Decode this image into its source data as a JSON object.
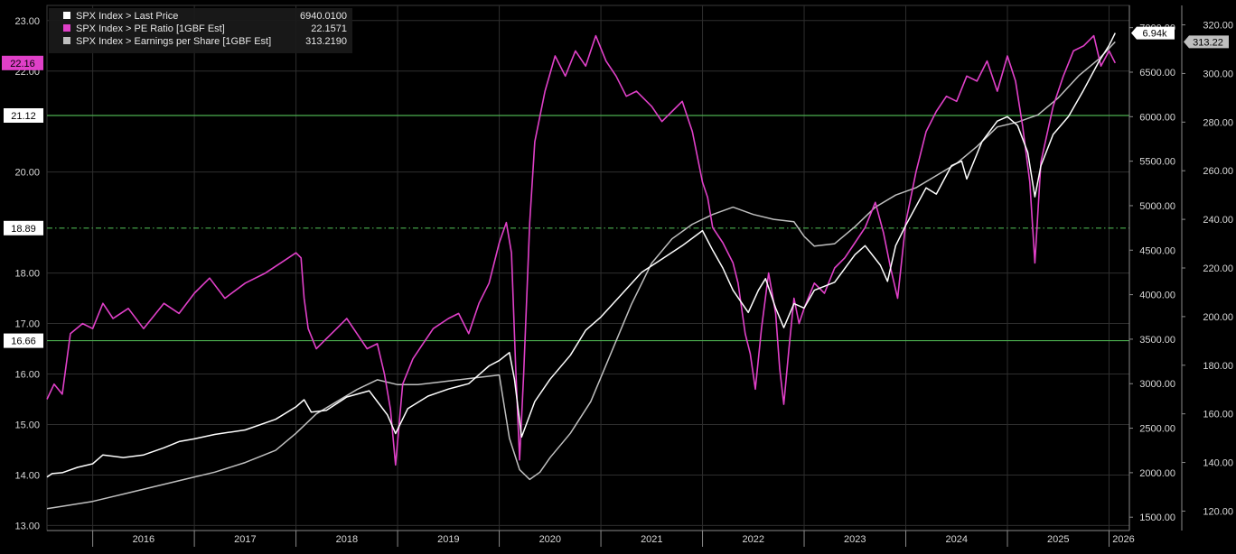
{
  "chart_data": {
    "type": "line",
    "x_years": [
      "2016",
      "2017",
      "2018",
      "2019",
      "2020",
      "2021",
      "2022",
      "2023",
      "2024",
      "2025",
      "2026"
    ],
    "legend": [
      {
        "label": "SPX Index > Last Price",
        "value": "6940.0100",
        "color": "#ffffff"
      },
      {
        "label": "SPX Index > PE Ratio [1GBF Est]",
        "value": "22.1571",
        "color": "#e040c8"
      },
      {
        "label": "SPX Index > Earnings per Share [1GBF Est]",
        "value": "313.2190",
        "color": "#bfbfbf"
      }
    ],
    "left_axis": {
      "ylim": [
        12.9,
        23.3
      ],
      "ticks": [
        "13.00",
        "14.00",
        "15.00",
        "16.00",
        "17.00",
        "18.00",
        "20.00",
        "22.00",
        "23.00"
      ]
    },
    "price_axis": {
      "ylim": [
        1350,
        7250
      ],
      "ticks": [
        "1500.00",
        "2000.00",
        "2500.00",
        "3000.00",
        "3500.00",
        "4000.00",
        "4500.00",
        "5000.00",
        "5500.00",
        "6000.00",
        "6500.00",
        "7000.00"
      ]
    },
    "eps_axis": {
      "ylim": [
        112,
        328
      ],
      "ticks": [
        "120.00",
        "140.00",
        "160.00",
        "180.00",
        "200.00",
        "220.00",
        "240.00",
        "260.00",
        "280.00",
        "300.00",
        "320.00"
      ]
    },
    "reference_lines": [
      {
        "label": "21.12",
        "value": 21.12,
        "style": "solid",
        "color": "#4caf50"
      },
      {
        "label": "18.89",
        "value": 18.89,
        "style": "dashdot",
        "color": "#4caf50"
      },
      {
        "label": "16.66",
        "value": 16.66,
        "style": "solid",
        "color": "#4caf50"
      }
    ],
    "tags": {
      "pe": "22.16",
      "price": "6.94k",
      "eps": "313.22"
    },
    "series": [
      {
        "name": "SPX Index > Last Price",
        "axis": "price",
        "color": "#ffffff",
        "x": [
          2015.55,
          2015.6,
          2015.7,
          2015.85,
          2016.0,
          2016.1,
          2016.3,
          2016.5,
          2016.7,
          2016.85,
          2017.0,
          2017.2,
          2017.5,
          2017.8,
          2018.0,
          2018.08,
          2018.15,
          2018.3,
          2018.5,
          2018.72,
          2018.8,
          2018.9,
          2018.98,
          2019.1,
          2019.3,
          2019.4,
          2019.5,
          2019.7,
          2019.9,
          2020.0,
          2020.1,
          2020.15,
          2020.22,
          2020.35,
          2020.5,
          2020.7,
          2020.85,
          2021.0,
          2021.2,
          2021.4,
          2021.6,
          2021.8,
          2022.0,
          2022.1,
          2022.2,
          2022.3,
          2022.45,
          2022.55,
          2022.62,
          2022.72,
          2022.8,
          2022.9,
          2023.0,
          2023.1,
          2023.3,
          2023.5,
          2023.6,
          2023.75,
          2023.82,
          2023.9,
          2024.0,
          2024.2,
          2024.3,
          2024.45,
          2024.55,
          2024.6,
          2024.75,
          2024.9,
          2025.0,
          2025.1,
          2025.2,
          2025.27,
          2025.33,
          2025.45,
          2025.6,
          2025.75,
          2025.9,
          2026.0,
          2026.06
        ],
        "y": [
          1950,
          1990,
          2000,
          2060,
          2100,
          2200,
          2170,
          2200,
          2280,
          2350,
          2380,
          2430,
          2480,
          2600,
          2740,
          2820,
          2680,
          2700,
          2850,
          2920,
          2800,
          2650,
          2440,
          2720,
          2860,
          2900,
          2940,
          3000,
          3200,
          3260,
          3350,
          3050,
          2400,
          2800,
          3050,
          3320,
          3600,
          3750,
          4000,
          4250,
          4400,
          4550,
          4720,
          4500,
          4300,
          4050,
          3800,
          4050,
          4180,
          3850,
          3630,
          3900,
          3850,
          4050,
          4140,
          4450,
          4550,
          4330,
          4150,
          4550,
          4780,
          5200,
          5130,
          5450,
          5500,
          5300,
          5720,
          5950,
          6000,
          5900,
          5600,
          5100,
          5450,
          5800,
          6000,
          6300,
          6620,
          6800,
          6940
        ]
      },
      {
        "name": "SPX Index > PE Ratio [1GBF Est]",
        "axis": "left",
        "color": "#e040c8",
        "x": [
          2015.55,
          2015.62,
          2015.7,
          2015.78,
          2015.9,
          2016.0,
          2016.1,
          2016.2,
          2016.35,
          2016.5,
          2016.7,
          2016.85,
          2017.0,
          2017.15,
          2017.3,
          2017.5,
          2017.7,
          2017.85,
          2018.0,
          2018.05,
          2018.08,
          2018.12,
          2018.2,
          2018.3,
          2018.4,
          2018.5,
          2018.6,
          2018.7,
          2018.8,
          2018.87,
          2018.93,
          2018.98,
          2019.05,
          2019.15,
          2019.25,
          2019.35,
          2019.5,
          2019.6,
          2019.7,
          2019.8,
          2019.9,
          2020.0,
          2020.07,
          2020.12,
          2020.16,
          2020.2,
          2020.24,
          2020.3,
          2020.35,
          2020.45,
          2020.55,
          2020.65,
          2020.75,
          2020.85,
          2020.95,
          2021.05,
          2021.15,
          2021.25,
          2021.35,
          2021.5,
          2021.6,
          2021.7,
          2021.8,
          2021.9,
          2022.0,
          2022.05,
          2022.1,
          2022.2,
          2022.3,
          2022.35,
          2022.42,
          2022.47,
          2022.52,
          2022.58,
          2022.65,
          2022.72,
          2022.76,
          2022.8,
          2022.85,
          2022.9,
          2022.95,
          2023.0,
          2023.1,
          2023.2,
          2023.3,
          2023.4,
          2023.5,
          2023.6,
          2023.7,
          2023.78,
          2023.85,
          2023.92,
          2024.0,
          2024.1,
          2024.2,
          2024.3,
          2024.4,
          2024.5,
          2024.6,
          2024.7,
          2024.8,
          2024.9,
          2025.0,
          2025.08,
          2025.15,
          2025.22,
          2025.27,
          2025.33,
          2025.45,
          2025.55,
          2025.65,
          2025.75,
          2025.85,
          2025.92,
          2026.0,
          2026.06
        ],
        "y": [
          15.5,
          15.8,
          15.6,
          16.8,
          17.0,
          16.9,
          17.4,
          17.1,
          17.3,
          16.9,
          17.4,
          17.2,
          17.6,
          17.9,
          17.5,
          17.8,
          18.0,
          18.2,
          18.4,
          18.3,
          17.5,
          16.9,
          16.5,
          16.7,
          16.9,
          17.1,
          16.8,
          16.5,
          16.6,
          16.0,
          15.3,
          14.2,
          15.8,
          16.3,
          16.6,
          16.9,
          17.1,
          17.2,
          16.8,
          17.4,
          17.8,
          18.6,
          19.0,
          18.4,
          16.2,
          14.3,
          16.0,
          19.0,
          20.6,
          21.6,
          22.3,
          21.9,
          22.4,
          22.1,
          22.7,
          22.2,
          21.9,
          21.5,
          21.6,
          21.3,
          21.0,
          21.2,
          21.4,
          20.8,
          19.8,
          19.5,
          18.9,
          18.6,
          18.2,
          17.8,
          16.8,
          16.4,
          15.7,
          16.9,
          18.0,
          17.2,
          16.1,
          15.4,
          16.5,
          17.5,
          17.0,
          17.3,
          17.8,
          17.6,
          18.1,
          18.3,
          18.6,
          18.9,
          19.4,
          18.8,
          18.1,
          17.5,
          19.0,
          20.0,
          20.8,
          21.2,
          21.5,
          21.4,
          21.9,
          21.8,
          22.2,
          21.6,
          22.3,
          21.8,
          20.9,
          19.8,
          18.2,
          20.2,
          21.3,
          21.9,
          22.4,
          22.5,
          22.7,
          22.1,
          22.4,
          22.16
        ]
      },
      {
        "name": "SPX Index > Earnings per Share [1GBF Est]",
        "axis": "eps",
        "color": "#bfbfbf",
        "x": [
          2015.55,
          2015.7,
          2016.0,
          2016.3,
          2016.6,
          2016.9,
          2017.2,
          2017.5,
          2017.8,
          2018.0,
          2018.2,
          2018.4,
          2018.6,
          2018.8,
          2019.0,
          2019.2,
          2019.4,
          2019.6,
          2019.8,
          2020.0,
          2020.1,
          2020.2,
          2020.3,
          2020.4,
          2020.5,
          2020.7,
          2020.9,
          2021.1,
          2021.3,
          2021.5,
          2021.7,
          2021.9,
          2022.1,
          2022.3,
          2022.5,
          2022.7,
          2022.9,
          2023.0,
          2023.1,
          2023.3,
          2023.5,
          2023.7,
          2023.9,
          2024.1,
          2024.3,
          2024.5,
          2024.7,
          2024.9,
          2025.1,
          2025.3,
          2025.5,
          2025.7,
          2025.9,
          2026.06
        ],
        "y": [
          121,
          122,
          124,
          127,
          130,
          133,
          136,
          140,
          145,
          152,
          160,
          165,
          170,
          174,
          172,
          172,
          173,
          174,
          175,
          176,
          150,
          137,
          133,
          136,
          142,
          152,
          165,
          185,
          205,
          222,
          232,
          238,
          242,
          245,
          242,
          240,
          239,
          233,
          229,
          230,
          237,
          245,
          250,
          253,
          258,
          263,
          270,
          278,
          280,
          283,
          290,
          299,
          306,
          313
        ]
      }
    ]
  }
}
